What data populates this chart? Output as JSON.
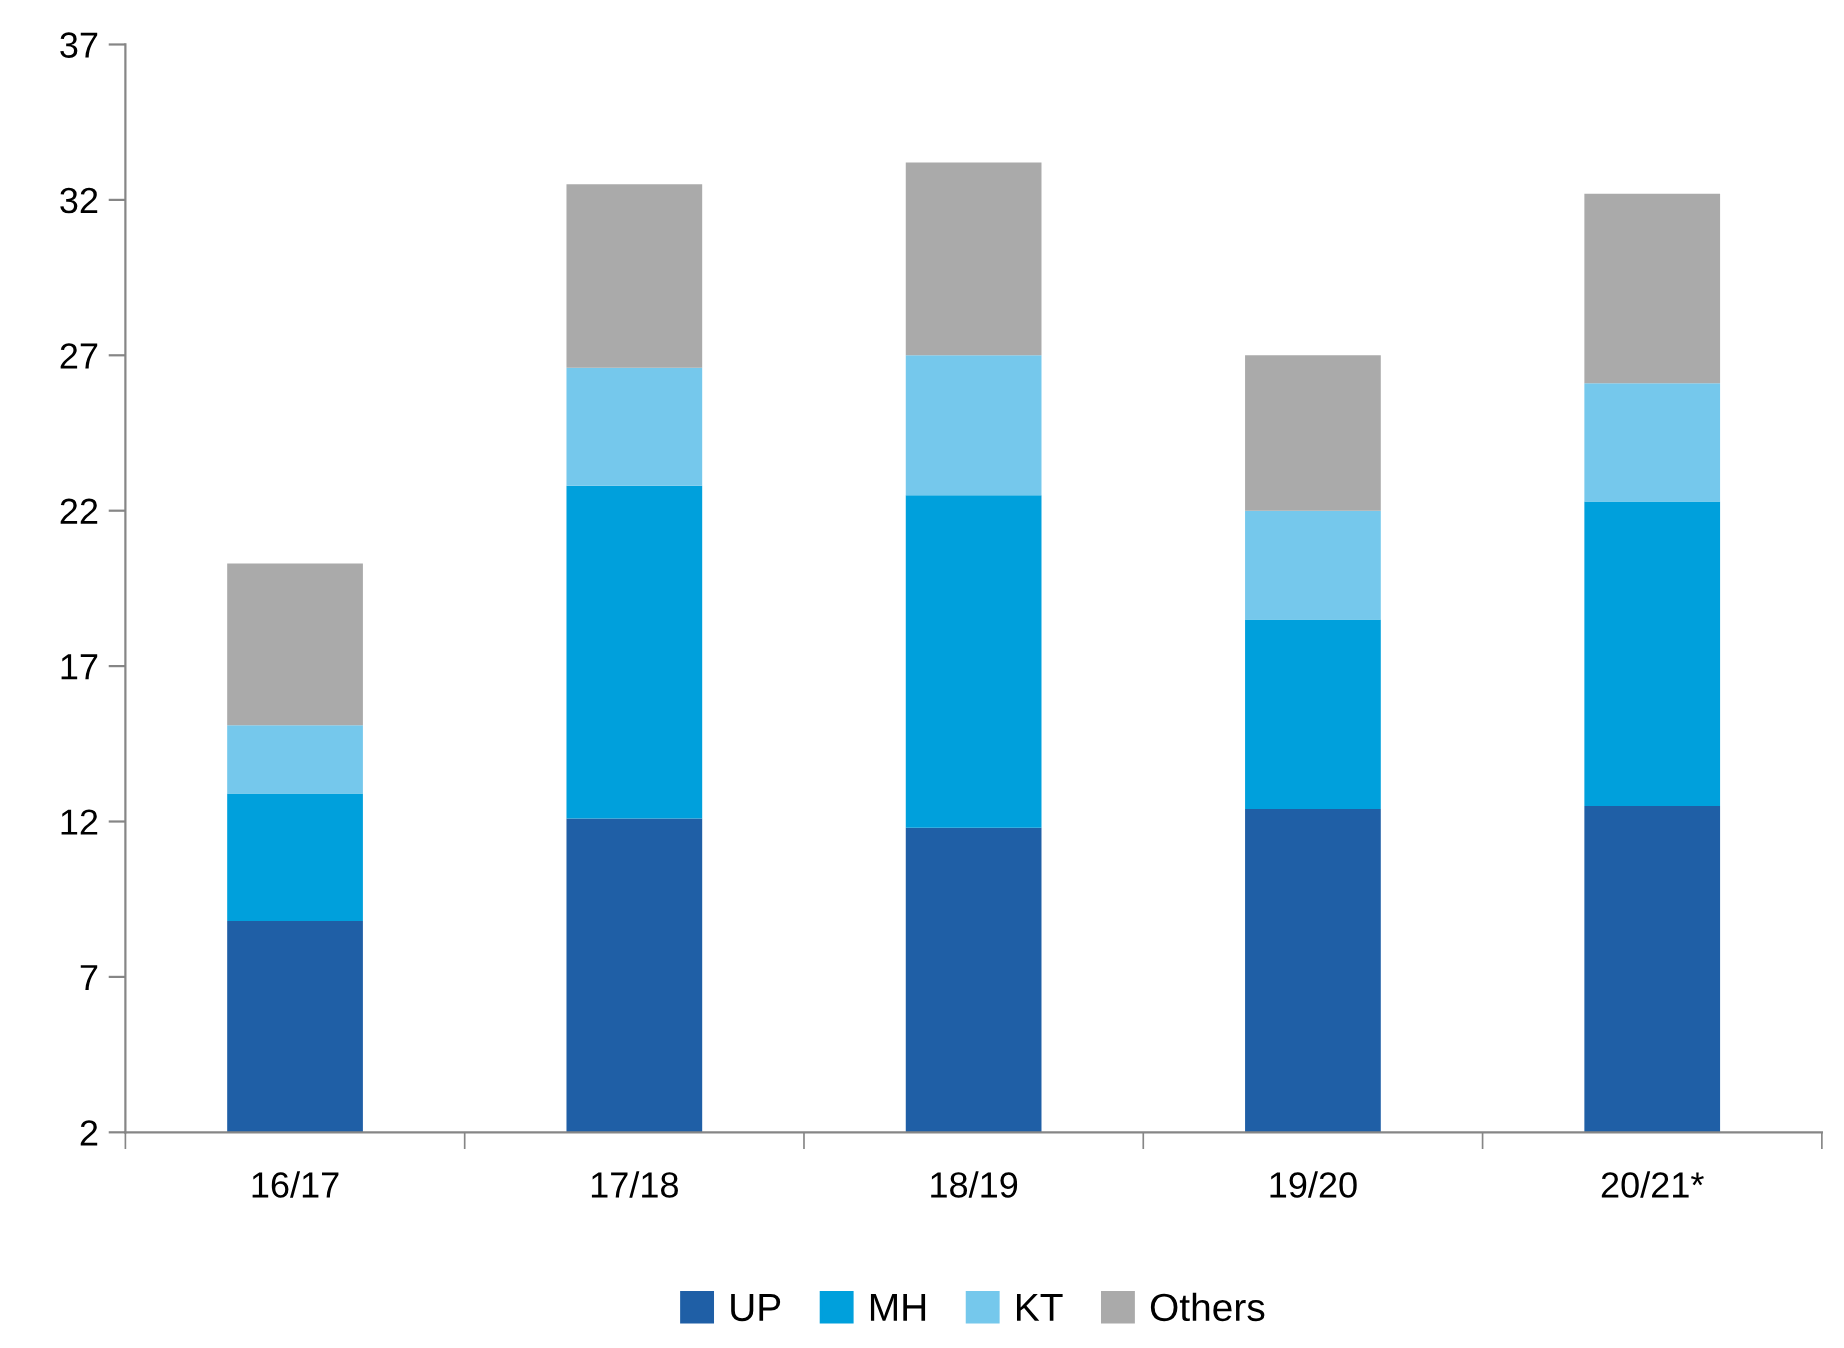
{
  "chart_data": {
    "type": "bar",
    "stacked": true,
    "categories": [
      "16/17",
      "17/18",
      "18/19",
      "19/20",
      "20/21*"
    ],
    "series": [
      {
        "name": "UP",
        "color": "#1f5fa6",
        "values": [
          8.8,
          12.1,
          11.8,
          12.4,
          12.5
        ]
      },
      {
        "name": "MH",
        "color": "#00a0dc",
        "values": [
          4.1,
          10.7,
          10.7,
          6.1,
          9.8
        ]
      },
      {
        "name": "KT",
        "color": "#75c8ec",
        "values": [
          2.2,
          3.8,
          4.5,
          3.5,
          3.8
        ]
      },
      {
        "name": "Others",
        "color": "#aaaaaa",
        "values": [
          5.2,
          5.9,
          6.2,
          5.0,
          6.1
        ]
      }
    ],
    "ylim": [
      2,
      37
    ],
    "yticks": [
      2,
      7,
      12,
      17,
      22,
      27,
      32,
      37
    ],
    "grid": false,
    "legend": "bottom"
  }
}
